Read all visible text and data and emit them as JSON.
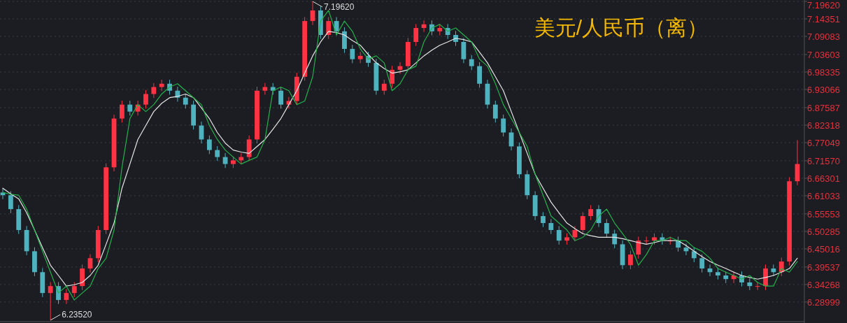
{
  "chart_data": {
    "type": "candlestick",
    "title": "美元/人民币（离）",
    "categories": [
      null,
      null,
      null,
      null,
      null,
      null,
      null,
      null,
      null,
      null,
      null,
      null,
      null,
      null,
      null,
      null,
      null,
      null,
      null,
      null,
      null,
      null,
      null,
      null,
      null,
      null,
      null,
      null,
      null,
      null,
      null,
      null,
      null,
      null,
      null,
      null,
      null,
      null,
      null,
      null,
      null,
      null,
      null,
      null,
      null,
      null,
      null,
      null,
      null,
      null,
      null,
      null,
      null,
      null,
      null,
      null,
      null,
      null,
      null,
      null,
      null,
      null,
      null,
      null,
      null,
      null,
      null,
      null,
      null,
      null,
      null,
      null,
      null,
      null,
      null,
      null,
      null,
      null,
      null,
      null,
      null,
      null,
      null,
      null,
      null,
      null,
      null,
      null,
      null,
      null,
      null,
      null,
      null,
      null,
      null,
      null,
      null,
      null,
      null,
      null,
      null
    ],
    "ohlc": [
      [
        6.62,
        6.632,
        6.6,
        6.612
      ],
      [
        6.612,
        6.624,
        6.558,
        6.57
      ],
      [
        6.57,
        6.582,
        6.495,
        6.507
      ],
      [
        6.507,
        6.519,
        6.431,
        6.443
      ],
      [
        6.443,
        6.455,
        6.368,
        6.38
      ],
      [
        6.38,
        6.392,
        6.305,
        6.317
      ],
      [
        6.317,
        6.35,
        6.2352,
        6.338
      ],
      [
        6.338,
        6.35,
        6.284,
        6.296
      ],
      [
        6.296,
        6.329,
        6.284,
        6.317
      ],
      [
        6.317,
        6.35,
        6.305,
        6.338
      ],
      [
        6.338,
        6.403,
        6.326,
        6.391
      ],
      [
        6.391,
        6.434,
        6.379,
        6.422
      ],
      [
        6.422,
        6.519,
        6.41,
        6.507
      ],
      [
        6.507,
        6.708,
        6.495,
        6.696
      ],
      [
        6.696,
        6.855,
        6.684,
        6.843
      ],
      [
        6.843,
        6.897,
        6.831,
        6.885
      ],
      [
        6.885,
        6.897,
        6.852,
        6.864
      ],
      [
        6.864,
        6.897,
        6.852,
        6.885
      ],
      [
        6.885,
        6.929,
        6.873,
        6.917
      ],
      [
        6.917,
        6.95,
        6.905,
        6.938
      ],
      [
        6.938,
        6.96,
        6.926,
        6.948
      ],
      [
        6.948,
        6.96,
        6.915,
        6.927
      ],
      [
        6.927,
        6.939,
        6.894,
        6.906
      ],
      [
        6.906,
        6.918,
        6.873,
        6.885
      ],
      [
        6.885,
        6.897,
        6.81,
        6.822
      ],
      [
        6.822,
        6.834,
        6.768,
        6.78
      ],
      [
        6.78,
        6.792,
        6.736,
        6.748
      ],
      [
        6.748,
        6.76,
        6.715,
        6.727
      ],
      [
        6.727,
        6.739,
        6.694,
        6.706
      ],
      [
        6.706,
        6.729,
        6.694,
        6.717
      ],
      [
        6.717,
        6.739,
        6.705,
        6.727
      ],
      [
        6.727,
        6.792,
        6.715,
        6.78
      ],
      [
        6.78,
        6.939,
        6.768,
        6.927
      ],
      [
        6.927,
        6.95,
        6.915,
        6.938
      ],
      [
        6.938,
        6.95,
        6.915,
        6.927
      ],
      [
        6.927,
        6.939,
        6.873,
        6.885
      ],
      [
        6.885,
        6.908,
        6.873,
        6.896
      ],
      [
        6.896,
        6.981,
        6.884,
        6.969
      ],
      [
        6.969,
        7.149,
        6.957,
        7.137
      ],
      [
        7.137,
        7.1962,
        7.125,
        7.169
      ],
      [
        7.169,
        7.181,
        7.083,
        7.095
      ],
      [
        7.095,
        7.149,
        7.083,
        7.137
      ],
      [
        7.137,
        7.149,
        7.094,
        7.106
      ],
      [
        7.106,
        7.118,
        7.041,
        7.053
      ],
      [
        7.053,
        7.065,
        7.01,
        7.022
      ],
      [
        7.022,
        7.044,
        7.01,
        7.032
      ],
      [
        7.032,
        7.044,
        6.999,
        7.011
      ],
      [
        7.011,
        7.023,
        6.915,
        6.927
      ],
      [
        6.927,
        6.96,
        6.915,
        6.948
      ],
      [
        6.948,
        7.002,
        6.936,
        6.99
      ],
      [
        6.99,
        7.013,
        6.978,
        7.001
      ],
      [
        7.001,
        7.086,
        6.989,
        7.074
      ],
      [
        7.074,
        7.128,
        7.062,
        7.116
      ],
      [
        7.116,
        7.139,
        7.104,
        7.127
      ],
      [
        7.127,
        7.139,
        7.094,
        7.106
      ],
      [
        7.106,
        7.128,
        7.094,
        7.116
      ],
      [
        7.116,
        7.128,
        7.083,
        7.095
      ],
      [
        7.095,
        7.107,
        7.062,
        7.074
      ],
      [
        7.074,
        7.086,
        7.01,
        7.022
      ],
      [
        7.022,
        7.034,
        6.989,
        7.001
      ],
      [
        7.001,
        7.013,
        6.936,
        6.948
      ],
      [
        6.948,
        6.96,
        6.873,
        6.885
      ],
      [
        6.885,
        6.897,
        6.831,
        6.843
      ],
      [
        6.843,
        6.855,
        6.789,
        6.801
      ],
      [
        6.801,
        6.813,
        6.747,
        6.759
      ],
      [
        6.759,
        6.771,
        6.663,
        6.675
      ],
      [
        6.675,
        6.687,
        6.6,
        6.612
      ],
      [
        6.612,
        6.624,
        6.537,
        6.549
      ],
      [
        6.549,
        6.561,
        6.516,
        6.528
      ],
      [
        6.528,
        6.54,
        6.495,
        6.507
      ],
      [
        6.507,
        6.519,
        6.463,
        6.475
      ],
      [
        6.475,
        6.497,
        6.463,
        6.485
      ],
      [
        6.485,
        6.519,
        6.473,
        6.507
      ],
      [
        6.507,
        6.561,
        6.495,
        6.549
      ],
      [
        6.549,
        6.582,
        6.537,
        6.57
      ],
      [
        6.57,
        6.582,
        6.516,
        6.528
      ],
      [
        6.528,
        6.54,
        6.484,
        6.496
      ],
      [
        6.496,
        6.508,
        6.452,
        6.464
      ],
      [
        6.464,
        6.476,
        6.389,
        6.401
      ],
      [
        6.401,
        6.445,
        6.389,
        6.433
      ],
      [
        6.433,
        6.487,
        6.421,
        6.475
      ],
      [
        6.475,
        6.487,
        6.463,
        6.475
      ],
      [
        6.475,
        6.497,
        6.463,
        6.485
      ],
      [
        6.485,
        6.497,
        6.463,
        6.475
      ],
      [
        6.475,
        6.487,
        6.463,
        6.475
      ],
      [
        6.475,
        6.487,
        6.442,
        6.454
      ],
      [
        6.454,
        6.466,
        6.431,
        6.443
      ],
      [
        6.443,
        6.455,
        6.41,
        6.422
      ],
      [
        6.422,
        6.434,
        6.379,
        6.391
      ],
      [
        6.391,
        6.403,
        6.368,
        6.38
      ],
      [
        6.38,
        6.392,
        6.358,
        6.37
      ],
      [
        6.37,
        6.382,
        6.347,
        6.359
      ],
      [
        6.359,
        6.382,
        6.347,
        6.37
      ],
      [
        6.37,
        6.382,
        6.337,
        6.349
      ],
      [
        6.349,
        6.361,
        6.326,
        6.338
      ],
      [
        6.338,
        6.35,
        6.326,
        6.338
      ],
      [
        6.338,
        6.403,
        6.326,
        6.391
      ],
      [
        6.391,
        6.403,
        6.368,
        6.38
      ],
      [
        6.38,
        6.424,
        6.368,
        6.412
      ],
      [
        6.412,
        6.666,
        6.4,
        6.654
      ],
      [
        6.654,
        6.778,
        6.642,
        6.706
      ]
    ],
    "colors": [
      "#4fb3bf",
      "#4fb3bf",
      "#4fb3bf",
      "#4fb3bf",
      "#4fb3bf",
      "#4fb3bf",
      "#ff3344",
      "#4fb3bf",
      "#ff3344",
      "#ff3344",
      "#ff3344",
      "#ff3344",
      "#ff3344",
      "#ff3344",
      "#ff3344",
      "#ff3344",
      "#4fb3bf",
      "#ff3344",
      "#ff3344",
      "#ff3344",
      "#ff3344",
      "#4fb3bf",
      "#4fb3bf",
      "#4fb3bf",
      "#4fb3bf",
      "#4fb3bf",
      "#4fb3bf",
      "#4fb3bf",
      "#4fb3bf",
      "#ff3344",
      "#ff3344",
      "#ff3344",
      "#ff3344",
      "#ff3344",
      "#4fb3bf",
      "#4fb3bf",
      "#ff3344",
      "#ff3344",
      "#ff3344",
      "#ff3344",
      "#4fb3bf",
      "#ff3344",
      "#4fb3bf",
      "#4fb3bf",
      "#4fb3bf",
      "#ff3344",
      "#4fb3bf",
      "#4fb3bf",
      "#ff3344",
      "#ff3344",
      "#ff3344",
      "#ff3344",
      "#ff3344",
      "#ff3344",
      "#4fb3bf",
      "#ff3344",
      "#4fb3bf",
      "#4fb3bf",
      "#4fb3bf",
      "#4fb3bf",
      "#4fb3bf",
      "#4fb3bf",
      "#4fb3bf",
      "#4fb3bf",
      "#4fb3bf",
      "#4fb3bf",
      "#4fb3bf",
      "#4fb3bf",
      "#4fb3bf",
      "#4fb3bf",
      "#4fb3bf",
      "#ff3344",
      "#ff3344",
      "#ff3344",
      "#ff3344",
      "#4fb3bf",
      "#4fb3bf",
      "#4fb3bf",
      "#4fb3bf",
      "#ff3344",
      "#ff3344",
      "#ff3344",
      "#ff3344",
      "#4fb3bf",
      "#ff3344",
      "#4fb3bf",
      "#4fb3bf",
      "#4fb3bf",
      "#4fb3bf",
      "#4fb3bf",
      "#4fb3bf",
      "#4fb3bf",
      "#ff3344",
      "#4fb3bf",
      "#4fb3bf",
      "#ff3344",
      "#ff3344",
      "#4fb3bf",
      "#ff3344",
      "#ff3344",
      "#ff3344"
    ],
    "series": [
      {
        "type": "line",
        "color": "#e6e6e6",
        "values": [
          6.633,
          6.616,
          6.601,
          6.559,
          6.507,
          6.454,
          6.401,
          6.37,
          6.338,
          6.342,
          6.349,
          6.37,
          6.401,
          6.464,
          6.528,
          6.633,
          6.706,
          6.78,
          6.822,
          6.864,
          6.889,
          6.906,
          6.91,
          6.917,
          6.906,
          6.875,
          6.843,
          6.801,
          6.769,
          6.748,
          6.742,
          6.738,
          6.759,
          6.78,
          6.811,
          6.843,
          6.885,
          6.927,
          6.98,
          7.032,
          7.074,
          7.106,
          7.102,
          7.095,
          7.078,
          7.064,
          7.036,
          7.011,
          6.994,
          6.98,
          6.984,
          6.99,
          7.011,
          7.032,
          7.049,
          7.064,
          7.074,
          7.085,
          7.081,
          7.074,
          7.043,
          7.011,
          6.969,
          6.927,
          6.864,
          6.801,
          6.738,
          6.675,
          6.633,
          6.591,
          6.559,
          6.528,
          6.511,
          6.496,
          6.49,
          6.485,
          6.485,
          6.485,
          6.481,
          6.475,
          6.469,
          6.464,
          6.469,
          6.475,
          6.475,
          6.475,
          6.46,
          6.443,
          6.427,
          6.412,
          6.401,
          6.391,
          6.38,
          6.37,
          6.364,
          6.359,
          6.364,
          6.37,
          6.38,
          6.391,
          6.422
        ]
      },
      {
        "type": "line",
        "color": "#22b14c",
        "values": [
          6.62,
          6.615,
          6.612,
          6.57,
          6.507,
          6.443,
          6.38,
          6.317,
          6.338,
          6.296,
          6.317,
          6.338,
          6.391,
          6.422,
          6.507,
          6.696,
          6.843,
          6.885,
          6.864,
          6.885,
          6.917,
          6.938,
          6.948,
          6.927,
          6.906,
          6.885,
          6.822,
          6.78,
          6.748,
          6.727,
          6.706,
          6.717,
          6.727,
          6.78,
          6.927,
          6.938,
          6.927,
          6.885,
          6.896,
          6.969,
          7.137,
          7.169,
          7.095,
          7.137,
          7.106,
          7.053,
          7.022,
          7.032,
          7.011,
          6.927,
          6.948,
          6.99,
          7.001,
          7.074,
          7.116,
          7.127,
          7.106,
          7.116,
          7.095,
          7.074,
          7.022,
          7.001,
          6.948,
          6.885,
          6.843,
          6.801,
          6.759,
          6.675,
          6.612,
          6.549,
          6.528,
          6.507,
          6.475,
          6.485,
          6.507,
          6.549,
          6.57,
          6.528,
          6.496,
          6.464,
          6.401,
          6.433,
          6.475,
          6.475,
          6.485,
          6.475,
          6.475,
          6.454,
          6.443,
          6.422,
          6.391,
          6.38,
          6.37,
          6.359,
          6.37,
          6.349,
          6.338,
          6.338,
          6.391,
          6.38,
          6.412
        ]
      }
    ],
    "ylim": [
      6.233,
      7.2004
    ],
    "yticks": [
      {
        "value": 7.1962,
        "label": "7.19620"
      },
      {
        "value": 7.14351,
        "label": "7.14351"
      },
      {
        "value": 7.09083,
        "label": "7.09083"
      },
      {
        "value": 7.03603,
        "label": "7.03603"
      },
      {
        "value": 6.98335,
        "label": "6.98335"
      },
      {
        "value": 6.93066,
        "label": "6.93066"
      },
      {
        "value": 6.87587,
        "label": "6.87587"
      },
      {
        "value": 6.82318,
        "label": "6.82318"
      },
      {
        "value": 6.77049,
        "label": "6.77049"
      },
      {
        "value": 6.7157,
        "label": "6.71570"
      },
      {
        "value": 6.66301,
        "label": "6.66301"
      },
      {
        "value": 6.61033,
        "label": "6.61033"
      },
      {
        "value": 6.55553,
        "label": "6.55553"
      },
      {
        "value": 6.50285,
        "label": "6.50285"
      },
      {
        "value": 6.45016,
        "label": "6.45016"
      },
      {
        "value": 6.39537,
        "label": "6.39537"
      },
      {
        "value": 6.34268,
        "label": "6.34268"
      },
      {
        "value": 6.28999,
        "label": "6.28999"
      }
    ],
    "grid": "y",
    "annotations": [
      "7.19620",
      "6.23520"
    ]
  }
}
